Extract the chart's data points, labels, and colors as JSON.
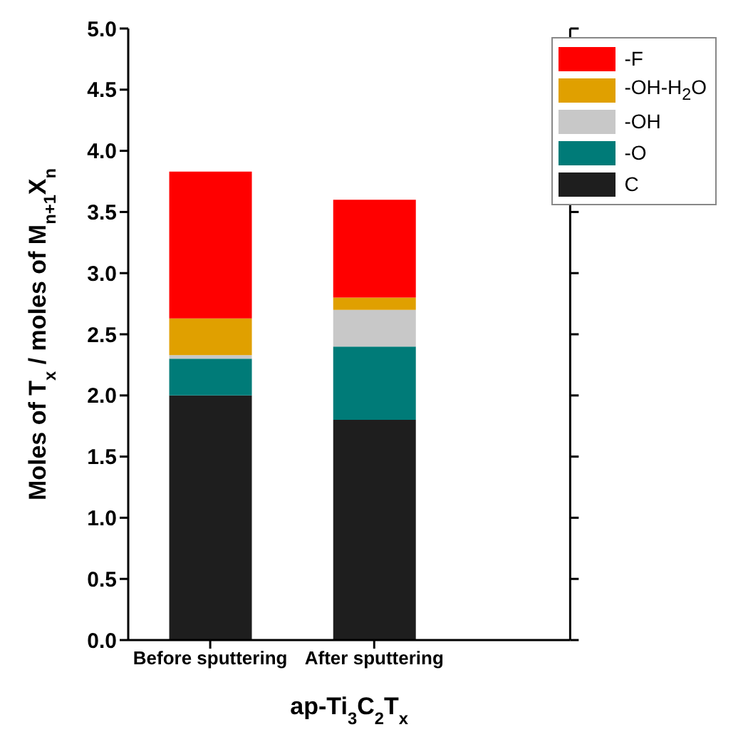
{
  "chart_data": {
    "type": "bar",
    "stacked": true,
    "xlabel": "ap-Ti$_{3}$C$_{2}$T$_{x}$",
    "ylabel": "Moles of T$_{x}$ / moles of M$_{n+1}$X$_{n}$",
    "categories": [
      "Before sputtering",
      "After sputtering"
    ],
    "series": [
      {
        "name": "C",
        "color": "#1e1e1e",
        "values": [
          2.0,
          1.8
        ]
      },
      {
        "name": "-O",
        "color": "#007b78",
        "values": [
          0.3,
          0.6
        ]
      },
      {
        "name": "-OH",
        "color": "#c8c8c8",
        "values": [
          0.03,
          0.3
        ]
      },
      {
        "name": "-OH-H$_{2}$O",
        "color": "#e0a000",
        "values": [
          0.3,
          0.1
        ]
      },
      {
        "name": "-F",
        "color": "#ff0000",
        "values": [
          1.2,
          0.8
        ]
      }
    ],
    "ylim": [
      0,
      5
    ],
    "yticks": [
      {
        "value": 0,
        "label": "0.0"
      },
      {
        "value": 0.5,
        "label": "0.5"
      },
      {
        "value": 1,
        "label": "1.0"
      },
      {
        "value": 1.5,
        "label": "1.5"
      },
      {
        "value": 2,
        "label": "2.0"
      },
      {
        "value": 2.5,
        "label": "2.5"
      },
      {
        "value": 3,
        "label": "3.0"
      },
      {
        "value": 3.5,
        "label": "3.5"
      },
      {
        "value": 4,
        "label": "4.0"
      },
      {
        "value": 4.5,
        "label": "4.5"
      },
      {
        "value": 5,
        "label": "5.0"
      }
    ],
    "legend": "top right"
  }
}
